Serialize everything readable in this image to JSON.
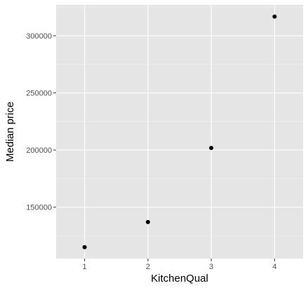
{
  "chart_data": {
    "type": "scatter",
    "xlabel": "KitchenQual",
    "ylabel": "Median price",
    "x": [
      1,
      2,
      3,
      4
    ],
    "y": [
      115000,
      137000,
      201800,
      316800
    ],
    "xticks": [
      1,
      2,
      3,
      4
    ],
    "xtick_labels": [
      "1",
      "2",
      "3",
      "4"
    ],
    "yticks": [
      150000,
      200000,
      250000,
      300000
    ],
    "ytick_labels": [
      "150000",
      "200000",
      "250000",
      "300000"
    ],
    "xlim": [
      0.55,
      4.45
    ],
    "ylim": [
      105000,
      327000
    ],
    "grid": true,
    "legend": "none",
    "colors": {
      "panel": "#e5e5e5",
      "grid_major": "#ffffff",
      "grid_minor": "#f2f2f2",
      "point": "#000000",
      "tick": "#333333"
    }
  }
}
